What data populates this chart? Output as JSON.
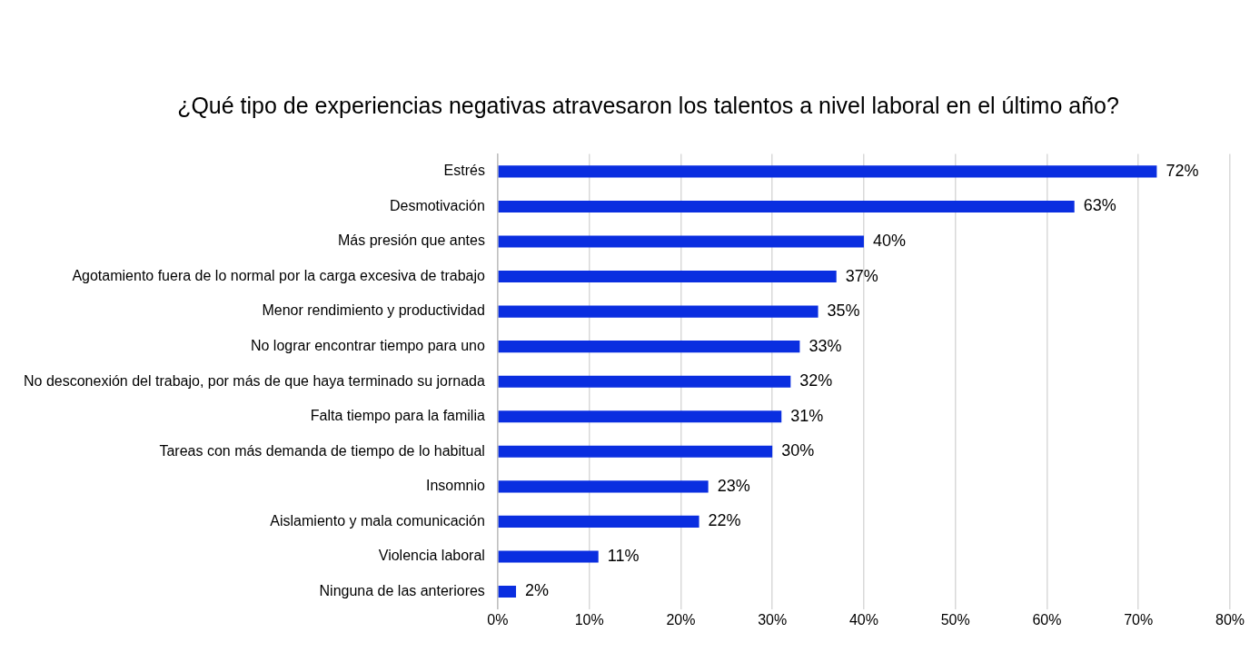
{
  "chart_data": {
    "type": "bar",
    "orientation": "horizontal",
    "title": "¿Qué tipo de experiencias negativas atravesaron los talentos a nivel laboral en el último año?",
    "categories": [
      "Estrés",
      "Desmotivación",
      "Más presión que antes",
      "Agotamiento fuera de lo normal por la carga excesiva de trabajo",
      "Menor rendimiento y productividad",
      "No lograr encontrar tiempo para uno",
      "No desconexión del trabajo, por más de que haya terminado su jornada",
      "Falta tiempo para la familia",
      "Tareas con más demanda de tiempo de lo habitual",
      "Insomnio",
      "Aislamiento y mala comunicación",
      "Violencia laboral",
      "Ninguna de las anteriores"
    ],
    "values": [
      72,
      63,
      40,
      37,
      35,
      33,
      32,
      31,
      30,
      23,
      22,
      11,
      2
    ],
    "value_labels": [
      "72%",
      "63%",
      "40%",
      "37%",
      "35%",
      "33%",
      "32%",
      "31%",
      "30%",
      "23%",
      "22%",
      "11%",
      "2%"
    ],
    "color": "#0a2ee0",
    "xlim": [
      0,
      80
    ],
    "xticks": [
      {
        "value": 0,
        "label": "0%"
      },
      {
        "value": 10,
        "label": "10%"
      },
      {
        "value": 20,
        "label": "20%"
      },
      {
        "value": 30,
        "label": "30%"
      },
      {
        "value": 40,
        "label": "40%"
      },
      {
        "value": 50,
        "label": "50%"
      },
      {
        "value": 60,
        "label": "60%"
      },
      {
        "value": 70,
        "label": "70%"
      },
      {
        "value": 80,
        "label": "80%"
      }
    ],
    "grid": "x",
    "legend": false
  }
}
